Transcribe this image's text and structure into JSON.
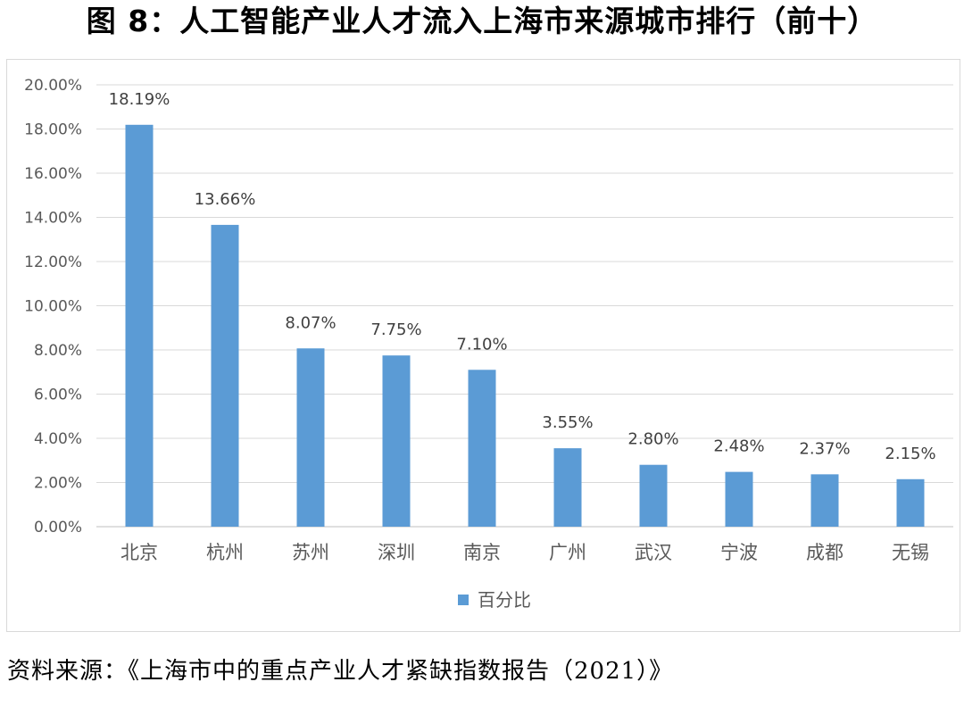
{
  "header": {
    "title": "图 8：人工智能产业人才流入上海市来源城市排行（前十）"
  },
  "source_note": "资料来源：《上海市中的重点产业人才紧缺指数报告（2021）》",
  "colors": {
    "bar": "#5b9bd5",
    "grid": "#d9d9d9",
    "text": "#595959",
    "frame": "#d9d9d9"
  },
  "chart_data": {
    "type": "bar",
    "categories": [
      "北京",
      "杭州",
      "苏州",
      "深圳",
      "南京",
      "广州",
      "武汉",
      "宁波",
      "成都",
      "无锡"
    ],
    "series": [
      {
        "name": "百分比",
        "values": [
          18.19,
          13.66,
          8.07,
          7.75,
          7.1,
          3.55,
          2.8,
          2.48,
          2.37,
          2.15
        ]
      }
    ],
    "data_labels": [
      "18.19%",
      "13.66%",
      "8.07%",
      "7.75%",
      "7.10%",
      "3.55%",
      "2.80%",
      "2.48%",
      "2.37%",
      "2.15%"
    ],
    "y_ticks": [
      "0.00%",
      "2.00%",
      "4.00%",
      "6.00%",
      "8.00%",
      "10.00%",
      "12.00%",
      "14.00%",
      "16.00%",
      "18.00%",
      "20.00%"
    ],
    "ylim": [
      0,
      20
    ],
    "grid": true,
    "legend": "bottom"
  }
}
